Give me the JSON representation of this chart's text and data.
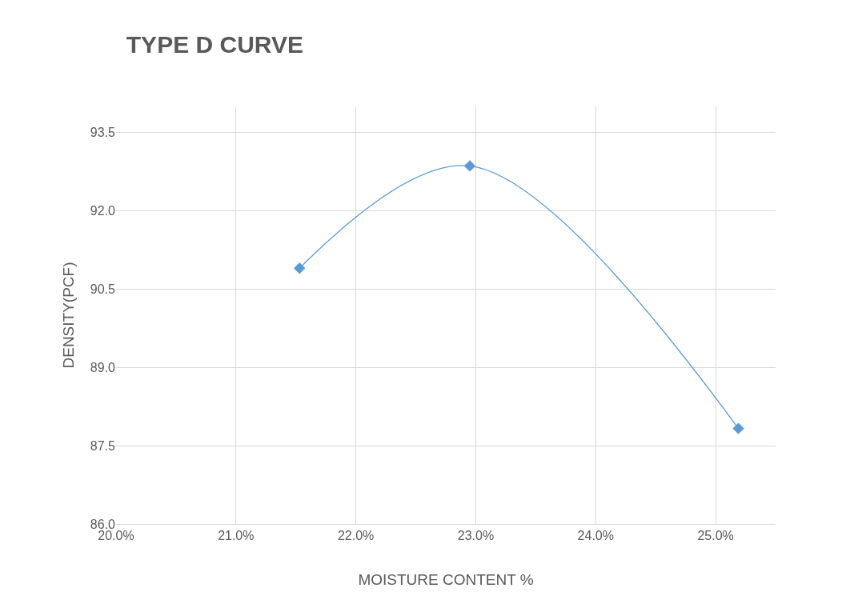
{
  "chart_data": {
    "type": "line",
    "title": "TYPE D CURVE",
    "xlabel": "MOISTURE CONTENT %",
    "ylabel": "DENSITY(PCF)",
    "x": [
      21.53,
      22.95,
      25.19
    ],
    "series": [
      {
        "color": "#5b9bd5",
        "values": [
          90.9,
          92.86,
          87.83
        ]
      }
    ],
    "xlim": [
      20,
      25.5
    ],
    "xticks": [
      {
        "value": 20,
        "label": "20.0%"
      },
      {
        "value": 21,
        "label": "21.0%"
      },
      {
        "value": 22,
        "label": "22.0%"
      },
      {
        "value": 23,
        "label": "23.0%"
      },
      {
        "value": 24,
        "label": "24.0%"
      },
      {
        "value": 25,
        "label": "25.0%"
      }
    ],
    "ylim": [
      86,
      94
    ],
    "yticks": [
      {
        "value": 86,
        "label": "86.0"
      },
      {
        "value": 87.5,
        "label": "87.5"
      },
      {
        "value": 89,
        "label": "89.0"
      },
      {
        "value": 90.5,
        "label": "90.5"
      },
      {
        "value": 92,
        "label": "92.0"
      },
      {
        "value": 93.5,
        "label": "93.5"
      }
    ],
    "grid": true,
    "marker": "diamond",
    "line_style": "solid",
    "legend": false
  }
}
